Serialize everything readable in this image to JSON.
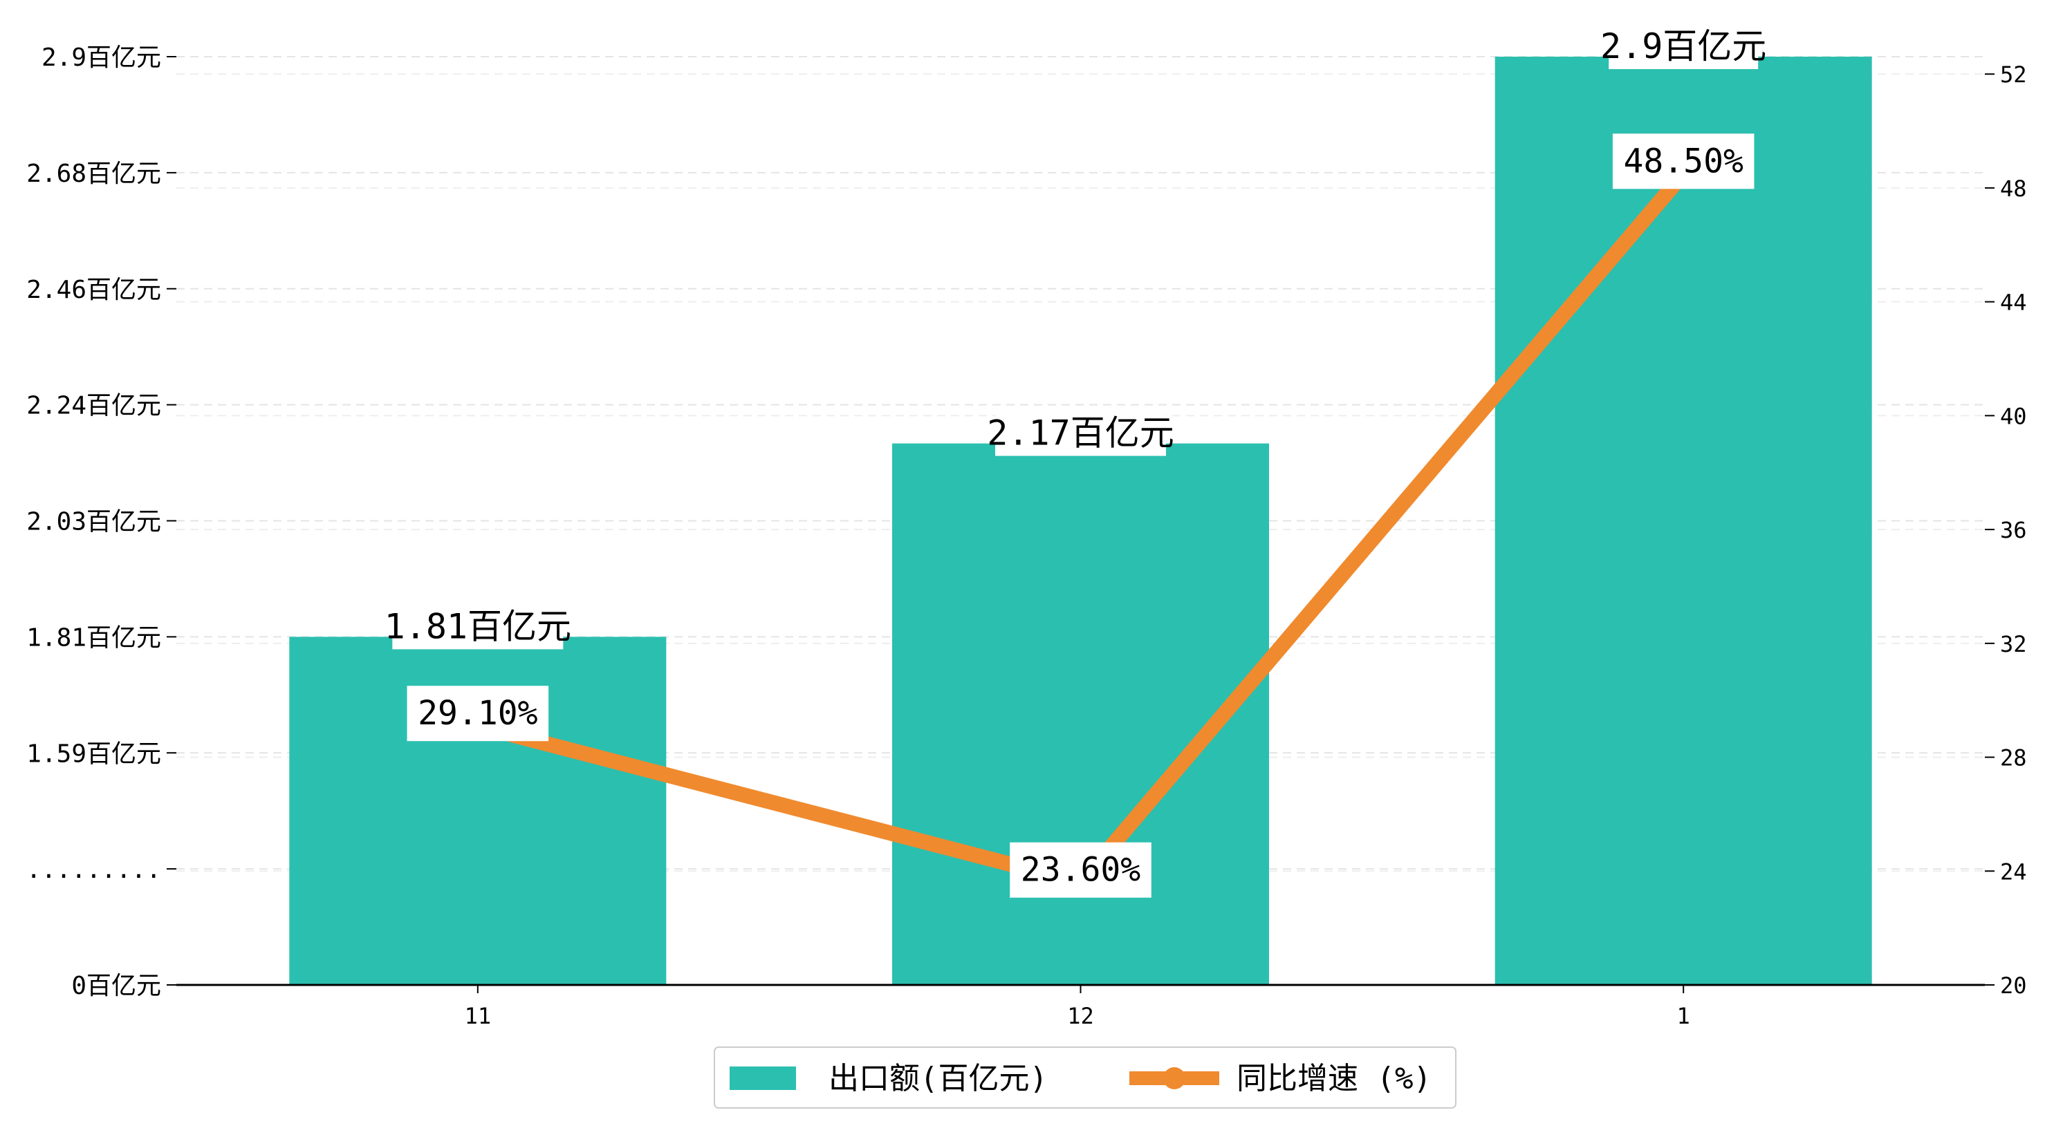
{
  "chart_data": {
    "type": "bar",
    "categories": [
      "11",
      "12",
      "1"
    ],
    "series": [
      {
        "name": "出口额(百亿元)",
        "type": "bar",
        "axis": "left",
        "values": [
          1.81,
          2.17,
          2.9
        ],
        "value_labels": [
          "1.81百亿元",
          "2.17百亿元",
          "2.9百亿元"
        ],
        "color": "#2bbfb0"
      },
      {
        "name": "同比增速 (%)",
        "type": "line",
        "axis": "right",
        "values": [
          29.1,
          23.6,
          48.5
        ],
        "value_labels": [
          "29.10%",
          "23.60%",
          "48.50%"
        ],
        "color": "#f08a2e"
      }
    ],
    "y_left": {
      "tick_values": [
        0,
        1.37,
        1.59,
        1.81,
        2.03,
        2.24,
        2.46,
        2.68,
        2.9
      ],
      "tick_labels": [
        "0百亿元",
        ".........",
        "1.59百亿元",
        "1.81百亿元",
        "2.03百亿元",
        "2.24百亿元",
        "2.46百亿元",
        "2.68百亿元",
        "2.9百亿元"
      ],
      "broken_axis": true,
      "ylim": [
        0,
        2.9
      ]
    },
    "y_right": {
      "tick_values": [
        20,
        24,
        28,
        32,
        36,
        40,
        44,
        48,
        52
      ],
      "tick_labels": [
        "20",
        "24",
        "28",
        "32",
        "36",
        "40",
        "44",
        "48",
        "52"
      ],
      "ylim": [
        20,
        53
      ]
    },
    "grid": "horizontal-dashed",
    "legend_position": "bottom-center",
    "title": "",
    "xlabel": "",
    "ylabel": ""
  }
}
